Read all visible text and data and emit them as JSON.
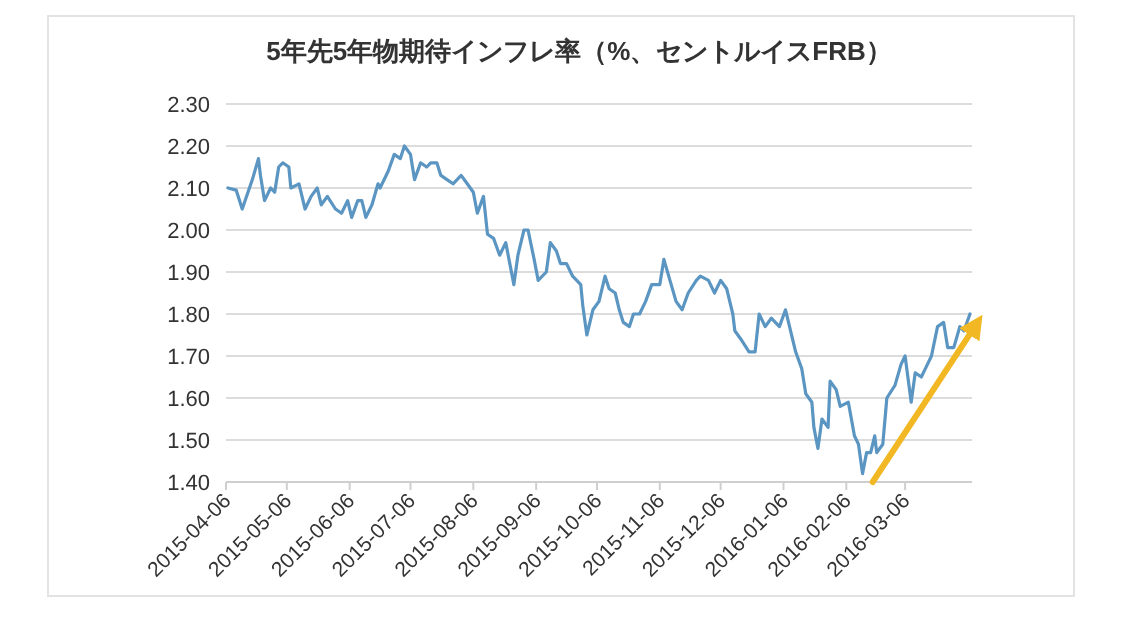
{
  "chart_data": {
    "type": "line",
    "title": "5年先5年物期待インフレ率（%、セントルイスFRB）",
    "x": [
      "2015-04-07",
      "2015-04-11",
      "2015-04-14",
      "2015-04-19",
      "2015-04-22",
      "2015-04-23",
      "2015-04-25",
      "2015-04-28",
      "2015-04-30",
      "2015-05-02",
      "2015-05-04",
      "2015-05-07",
      "2015-05-08",
      "2015-05-12",
      "2015-05-15",
      "2015-05-18",
      "2015-05-21",
      "2015-05-23",
      "2015-05-26",
      "2015-05-30",
      "2015-06-02",
      "2015-06-05",
      "2015-06-07",
      "2015-06-10",
      "2015-06-12",
      "2015-06-14",
      "2015-06-17",
      "2015-06-20",
      "2015-06-21",
      "2015-06-25",
      "2015-06-28",
      "2015-07-01",
      "2015-07-03",
      "2015-07-06",
      "2015-07-08",
      "2015-07-11",
      "2015-07-14",
      "2015-07-16",
      "2015-07-19",
      "2015-07-21",
      "2015-07-24",
      "2015-07-27",
      "2015-07-31",
      "2015-08-03",
      "2015-08-06",
      "2015-08-08",
      "2015-08-11",
      "2015-08-13",
      "2015-08-16",
      "2015-08-19",
      "2015-08-22",
      "2015-08-24",
      "2015-08-26",
      "2015-08-28",
      "2015-08-31",
      "2015-09-02",
      "2015-09-05",
      "2015-09-07",
      "2015-09-11",
      "2015-09-13",
      "2015-09-16",
      "2015-09-18",
      "2015-09-21",
      "2015-09-24",
      "2015-09-28",
      "2015-09-29",
      "2015-10-01",
      "2015-10-04",
      "2015-10-07",
      "2015-10-10",
      "2015-10-12",
      "2015-10-15",
      "2015-10-17",
      "2015-10-19",
      "2015-10-22",
      "2015-10-24",
      "2015-10-27",
      "2015-10-30",
      "2015-11-02",
      "2015-11-06",
      "2015-11-08",
      "2015-11-11",
      "2015-11-14",
      "2015-11-17",
      "2015-11-20",
      "2015-11-24",
      "2015-11-26",
      "2015-11-30",
      "2015-12-03",
      "2015-12-06",
      "2015-12-09",
      "2015-12-12",
      "2015-12-13",
      "2015-12-16",
      "2015-12-20",
      "2015-12-23",
      "2015-12-25",
      "2015-12-28",
      "2015-12-31",
      "2016-01-04",
      "2016-01-07",
      "2016-01-09",
      "2016-01-12",
      "2016-01-15",
      "2016-01-17",
      "2016-01-20",
      "2016-01-21",
      "2016-01-23",
      "2016-01-25",
      "2016-01-28",
      "2016-01-29",
      "2016-02-01",
      "2016-02-03",
      "2016-02-07",
      "2016-02-10",
      "2016-02-12",
      "2016-02-14",
      "2016-02-16",
      "2016-02-18",
      "2016-02-20",
      "2016-02-21",
      "2016-02-24",
      "2016-02-26",
      "2016-03-01",
      "2016-03-04",
      "2016-03-06",
      "2016-03-09",
      "2016-03-11",
      "2016-03-14",
      "2016-03-16",
      "2016-03-19",
      "2016-03-22",
      "2016-03-25",
      "2016-03-27",
      "2016-03-30",
      "2016-04-02",
      "2016-04-04",
      "2016-04-07"
    ],
    "series": [
      {
        "color": "#5b95c2",
        "values": [
          2.1,
          2.095,
          2.05,
          2.12,
          2.17,
          2.13,
          2.07,
          2.1,
          2.09,
          2.15,
          2.16,
          2.15,
          2.1,
          2.11,
          2.05,
          2.08,
          2.1,
          2.06,
          2.08,
          2.05,
          2.04,
          2.07,
          2.03,
          2.07,
          2.07,
          2.03,
          2.06,
          2.11,
          2.1,
          2.14,
          2.18,
          2.17,
          2.2,
          2.18,
          2.12,
          2.16,
          2.15,
          2.16,
          2.16,
          2.13,
          2.12,
          2.11,
          2.13,
          2.11,
          2.09,
          2.04,
          2.08,
          1.99,
          1.98,
          1.94,
          1.97,
          1.92,
          1.87,
          1.94,
          2.0,
          2.0,
          1.93,
          1.88,
          1.9,
          1.97,
          1.95,
          1.92,
          1.92,
          1.89,
          1.87,
          1.82,
          1.75,
          1.81,
          1.83,
          1.89,
          1.86,
          1.85,
          1.81,
          1.78,
          1.77,
          1.8,
          1.8,
          1.83,
          1.87,
          1.87,
          1.93,
          1.88,
          1.83,
          1.81,
          1.85,
          1.88,
          1.89,
          1.88,
          1.85,
          1.88,
          1.86,
          1.8,
          1.76,
          1.74,
          1.71,
          1.71,
          1.8,
          1.77,
          1.79,
          1.77,
          1.81,
          1.77,
          1.71,
          1.67,
          1.61,
          1.59,
          1.53,
          1.48,
          1.55,
          1.53,
          1.64,
          1.62,
          1.58,
          1.59,
          1.51,
          1.49,
          1.42,
          1.47,
          1.47,
          1.51,
          1.47,
          1.49,
          1.6,
          1.63,
          1.68,
          1.7,
          1.59,
          1.66,
          1.65,
          1.67,
          1.7,
          1.77,
          1.78,
          1.72,
          1.72,
          1.77,
          1.76,
          1.8
        ]
      },
      {
        "type": "line",
        "color": "#f2b824",
        "x": [
          "2016-02-19",
          "2016-04-08"
        ],
        "values": [
          1.4,
          1.76
        ]
      }
    ],
    "xlim": [
      "2015-04-06",
      "2016-04-08"
    ],
    "xticks": [
      "2015-04-06",
      "2015-05-06",
      "2015-06-06",
      "2015-07-06",
      "2015-08-06",
      "2015-09-06",
      "2015-10-06",
      "2015-11-06",
      "2015-12-06",
      "2016-01-06",
      "2016-02-06",
      "2016-03-06"
    ],
    "ylim": [
      1.4,
      2.3
    ],
    "yticks": [
      {
        "value": 1.4,
        "label": "1.40"
      },
      {
        "value": 1.5,
        "label": "1.50"
      },
      {
        "value": 1.6,
        "label": "1.60"
      },
      {
        "value": 1.7,
        "label": "1.70"
      },
      {
        "value": 1.8,
        "label": "1.80"
      },
      {
        "value": 1.9,
        "label": "1.90"
      },
      {
        "value": 2.0,
        "label": "2.00"
      },
      {
        "value": 2.1,
        "label": "2.10"
      },
      {
        "value": 2.2,
        "label": "2.20"
      },
      {
        "value": 2.3,
        "label": "2.30"
      }
    ],
    "grid": "y",
    "marker": "none",
    "line_style": "solid"
  }
}
